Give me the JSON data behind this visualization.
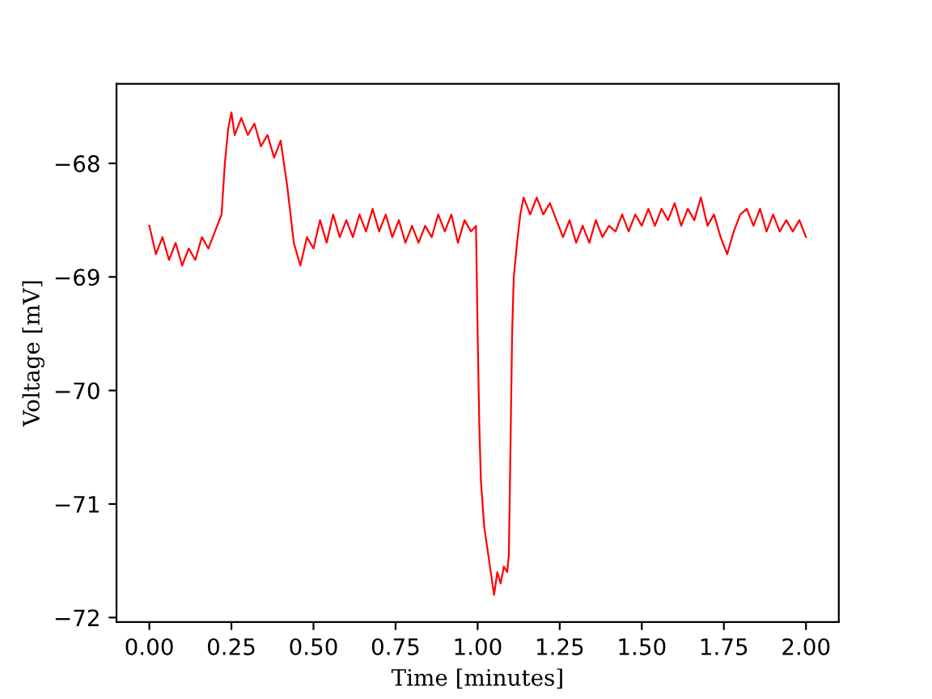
{
  "chart_data": {
    "type": "line",
    "xlabel": "Time [minutes]",
    "ylabel": "Voltage [mV]",
    "grid": false,
    "marker": "none",
    "line_style": "solid",
    "xlim": [
      -0.1,
      2.1
    ],
    "ylim": [
      -72.04,
      -67.3
    ],
    "xticks": [
      {
        "value": 0,
        "label": "0.00"
      },
      {
        "value": 0.25,
        "label": "0.25"
      },
      {
        "value": 0.5,
        "label": "0.50"
      },
      {
        "value": 0.75,
        "label": "0.75"
      },
      {
        "value": 1,
        "label": "1.00"
      },
      {
        "value": 1.25,
        "label": "1.25"
      },
      {
        "value": 1.5,
        "label": "1.50"
      },
      {
        "value": 1.75,
        "label": "1.75"
      },
      {
        "value": 2,
        "label": "2.00"
      }
    ],
    "yticks": [
      {
        "value": -72,
        "label": "−72"
      },
      {
        "value": -71,
        "label": "−71"
      },
      {
        "value": -70,
        "label": "−70"
      },
      {
        "value": -69,
        "label": "−69"
      },
      {
        "value": -68,
        "label": "−68"
      }
    ],
    "series": [
      {
        "color": "#ff0000",
        "x": [
          0,
          0.02,
          0.04,
          0.06,
          0.08,
          0.1,
          0.12,
          0.14,
          0.16,
          0.18,
          0.2,
          0.22,
          0.23,
          0.24,
          0.25,
          0.26,
          0.28,
          0.3,
          0.32,
          0.34,
          0.36,
          0.38,
          0.4,
          0.42,
          0.44,
          0.46,
          0.48,
          0.5,
          0.52,
          0.54,
          0.56,
          0.58,
          0.6,
          0.62,
          0.64,
          0.66,
          0.68,
          0.7,
          0.72,
          0.74,
          0.76,
          0.78,
          0.8,
          0.82,
          0.84,
          0.86,
          0.88,
          0.9,
          0.92,
          0.94,
          0.96,
          0.98,
          0.995,
          1.0,
          1.005,
          1.01,
          1.02,
          1.03,
          1.04,
          1.05,
          1.06,
          1.07,
          1.08,
          1.09,
          1.095,
          1.1,
          1.105,
          1.11,
          1.12,
          1.13,
          1.14,
          1.16,
          1.18,
          1.2,
          1.22,
          1.24,
          1.26,
          1.28,
          1.3,
          1.32,
          1.34,
          1.36,
          1.38,
          1.4,
          1.42,
          1.44,
          1.46,
          1.48,
          1.5,
          1.52,
          1.54,
          1.56,
          1.58,
          1.6,
          1.62,
          1.64,
          1.66,
          1.68,
          1.7,
          1.72,
          1.74,
          1.76,
          1.78,
          1.8,
          1.82,
          1.84,
          1.86,
          1.88,
          1.9,
          1.92,
          1.94,
          1.96,
          1.98,
          2.0
        ],
        "values": [
          -68.55,
          -68.8,
          -68.65,
          -68.85,
          -68.7,
          -68.9,
          -68.75,
          -68.85,
          -68.65,
          -68.75,
          -68.6,
          -68.45,
          -68.0,
          -67.7,
          -67.55,
          -67.75,
          -67.6,
          -67.75,
          -67.65,
          -67.85,
          -67.75,
          -67.95,
          -67.8,
          -68.2,
          -68.7,
          -68.9,
          -68.65,
          -68.75,
          -68.5,
          -68.7,
          -68.45,
          -68.65,
          -68.5,
          -68.65,
          -68.45,
          -68.6,
          -68.4,
          -68.6,
          -68.45,
          -68.65,
          -68.5,
          -68.7,
          -68.55,
          -68.7,
          -68.55,
          -68.65,
          -68.45,
          -68.6,
          -68.45,
          -68.7,
          -68.5,
          -68.6,
          -68.55,
          -69.5,
          -70.3,
          -70.8,
          -71.2,
          -71.4,
          -71.6,
          -71.8,
          -71.6,
          -71.7,
          -71.55,
          -71.6,
          -71.45,
          -70.5,
          -69.5,
          -69.0,
          -68.7,
          -68.45,
          -68.3,
          -68.45,
          -68.3,
          -68.45,
          -68.35,
          -68.5,
          -68.65,
          -68.5,
          -68.7,
          -68.55,
          -68.7,
          -68.5,
          -68.65,
          -68.55,
          -68.6,
          -68.45,
          -68.6,
          -68.45,
          -68.55,
          -68.4,
          -68.55,
          -68.4,
          -68.5,
          -68.35,
          -68.55,
          -68.4,
          -68.5,
          -68.3,
          -68.55,
          -68.45,
          -68.65,
          -68.8,
          -68.6,
          -68.45,
          -68.4,
          -68.55,
          -68.4,
          -68.6,
          -68.45,
          -68.6,
          -68.5,
          -68.6,
          -68.5,
          -68.65
        ]
      }
    ]
  }
}
